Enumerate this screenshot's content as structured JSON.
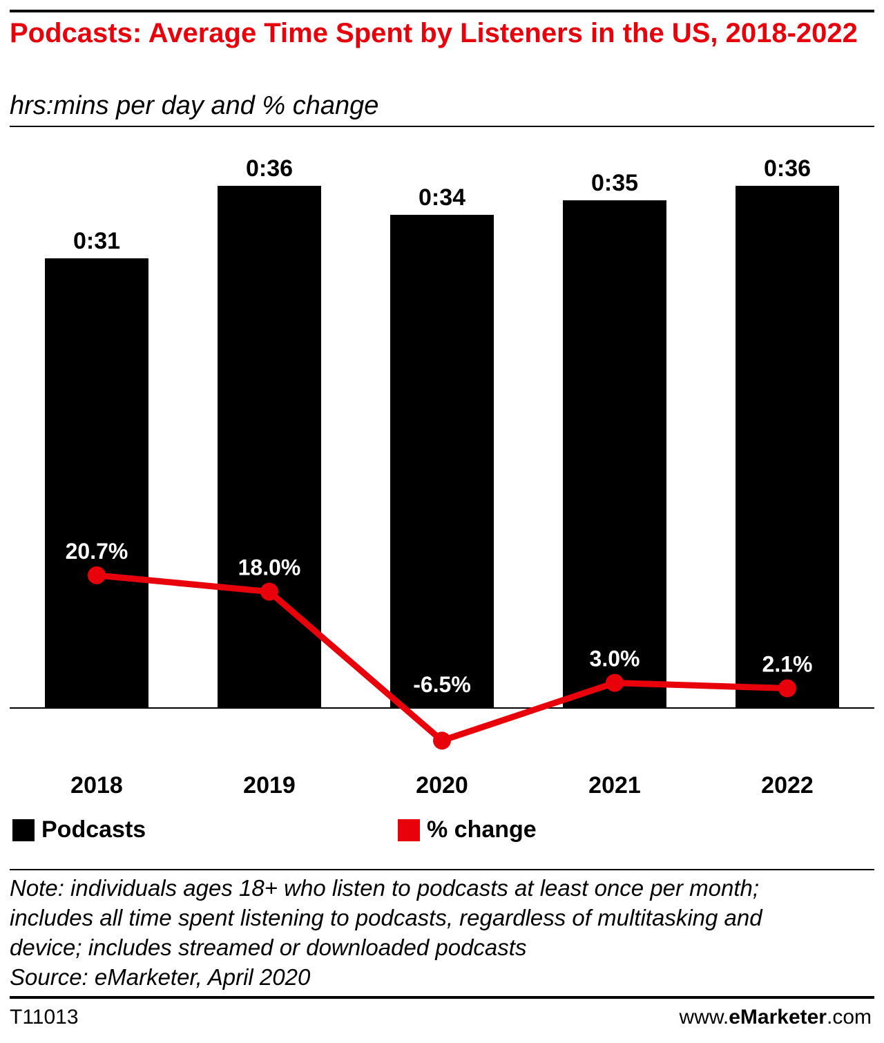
{
  "header": {
    "title": "Podcasts: Average Time Spent by Listeners in the US, 2018-2022",
    "subtitle": "hrs:mins per day and % change"
  },
  "chart_data": {
    "type": "bar",
    "categories": [
      "2018",
      "2019",
      "2020",
      "2021",
      "2022"
    ],
    "series": [
      {
        "name": "Podcasts",
        "type": "bar",
        "values_minutes": [
          31,
          36,
          34,
          35,
          36
        ],
        "labels": [
          "0:31",
          "0:36",
          "0:34",
          "0:35",
          "0:36"
        ],
        "color": "#000000"
      },
      {
        "name": "% change",
        "type": "line",
        "values": [
          20.7,
          18.0,
          -6.5,
          3.0,
          2.1
        ],
        "labels": [
          "20.7%",
          "18.0%",
          "-6.5%",
          "3.0%",
          "2.1%"
        ],
        "color": "#e8000b"
      }
    ],
    "legend_position": "bottom",
    "grid": false
  },
  "note": {
    "lines": [
      "Note: individuals ages 18+ who listen to podcasts at least once per month;",
      "includes all time spent listening to podcasts, regardless of multitasking and",
      "device; includes streamed or downloaded podcasts",
      "Source: eMarketer, April 2020"
    ]
  },
  "footer": {
    "chart_id": "T11013",
    "site_prefix": "www.",
    "site_brand_e": "e",
    "site_brand_rest": "Marketer",
    "site_suffix": ".com"
  }
}
